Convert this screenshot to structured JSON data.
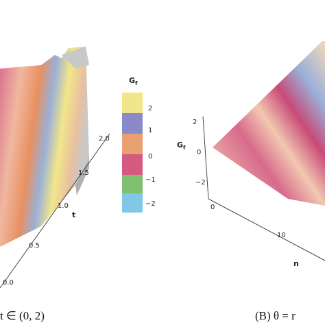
{
  "left_panel": {
    "axis_t": {
      "label": "t",
      "ticks": [
        "2.0",
        "1.5",
        "1.0",
        "0.5",
        "0.0"
      ]
    },
    "caption": "t ∈ (0, 2)"
  },
  "colorbar": {
    "label": "G",
    "label_sub": "f",
    "ticks": [
      "2",
      "1",
      "0",
      "−1",
      "−2"
    ]
  },
  "right_panel": {
    "axis_g": {
      "label": "G",
      "label_sub": "f",
      "ticks": [
        "2",
        "0",
        "−2"
      ]
    },
    "axis_n": {
      "label": "n",
      "ticks": [
        "0",
        "10"
      ]
    },
    "caption": "(B) θ = r"
  }
}
